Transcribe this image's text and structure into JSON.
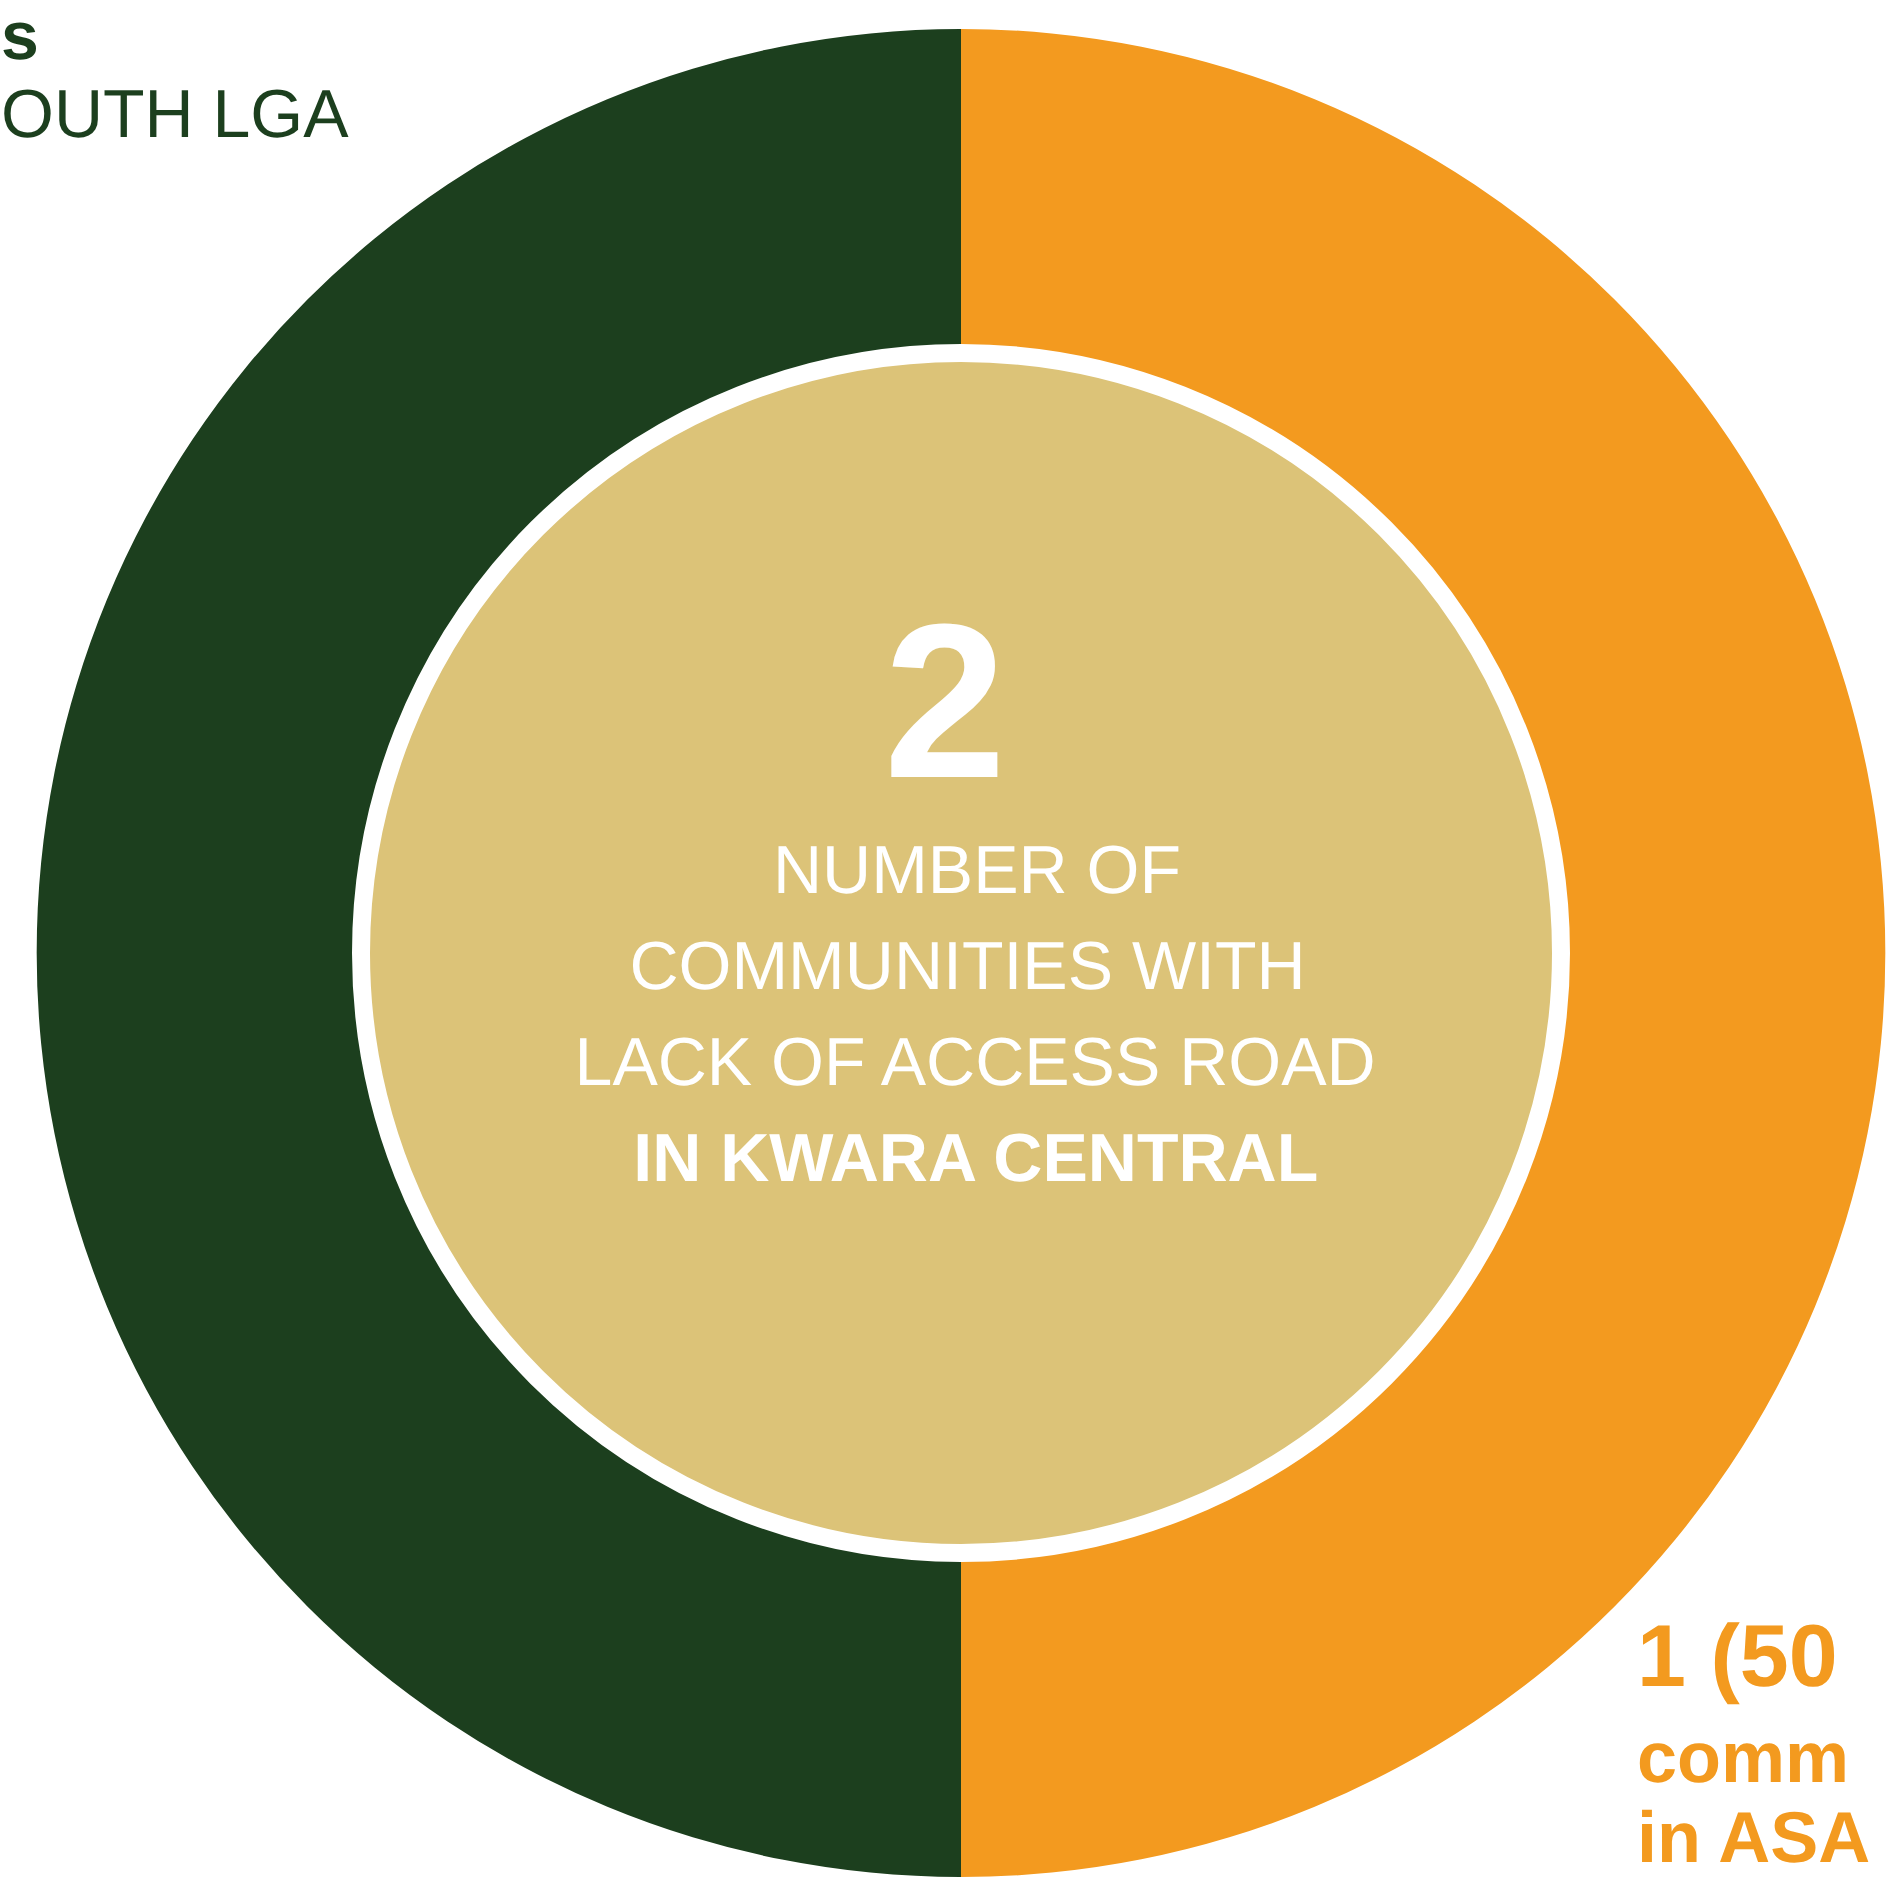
{
  "chart_data": {
    "type": "donut",
    "title": "NUMBER OF COMMUNITIES  WITH LACK OF ACCESS ROAD IN KWARA CENTRAL",
    "categories": [
      null,
      null
    ],
    "values": [
      50,
      50
    ],
    "colors": [
      "#f39a1f",
      "#1c3f1e"
    ],
    "annotations": [
      "2",
      "s",
      "OUTH LGA",
      "1 (50",
      "comm",
      "in ASA"
    ]
  }
}
